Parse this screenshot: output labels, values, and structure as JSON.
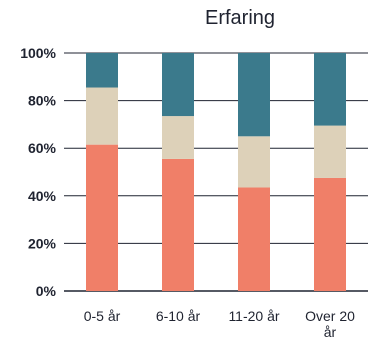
{
  "chart_data": {
    "type": "bar",
    "stacked": true,
    "title": "Erfaring",
    "xlabel": "",
    "ylabel": "",
    "categories": [
      "0-5 år",
      "6-10 år",
      "11-20 år",
      "Over 20 år"
    ],
    "series": [
      {
        "values": [
          61.5,
          55.5,
          43.5,
          47.5
        ],
        "color": "#f07f68"
      },
      {
        "values": [
          24,
          18,
          21.5,
          22
        ],
        "color": "#ddd1b9"
      },
      {
        "values": [
          14.5,
          26.5,
          35,
          30.5
        ],
        "color": "#3b7a8c"
      }
    ],
    "ylim": [
      0,
      100
    ],
    "yticks": [
      "0%",
      "20%",
      "40%",
      "60%",
      "80%",
      "100%"
    ],
    "grid": true
  }
}
